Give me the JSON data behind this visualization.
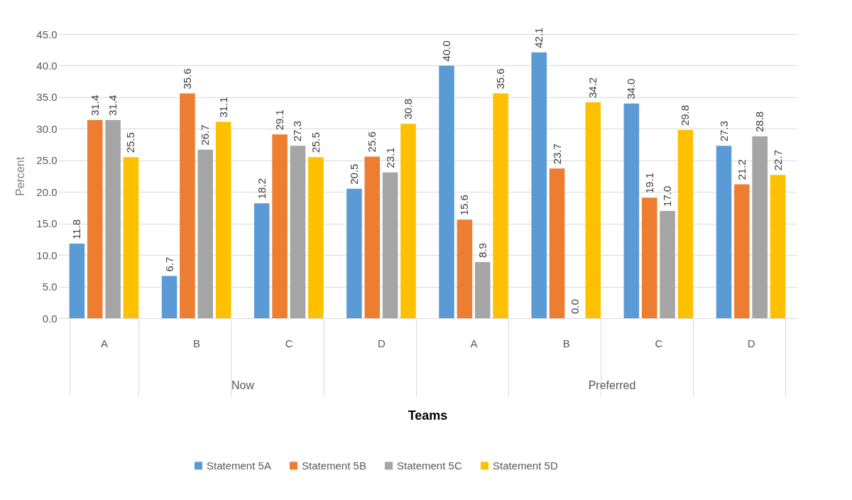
{
  "chart_data": {
    "type": "bar",
    "xlabel": "Teams",
    "ylabel": "Percent",
    "categories": [
      "A",
      "B",
      "C",
      "D",
      "A",
      "B",
      "C",
      "D"
    ],
    "series": [
      {
        "name": "Statement 5A",
        "color": "#5b9bd5",
        "values": [
          11.8,
          6.7,
          18.2,
          20.5,
          40.0,
          42.1,
          34.0,
          27.3
        ],
        "value_labels": [
          "11.8",
          "6.7",
          "18.2",
          "20.5",
          "40.0",
          "42.1",
          "34.0",
          "27.3"
        ]
      },
      {
        "name": "Statement 5B",
        "color": "#ed7d31",
        "values": [
          31.4,
          35.6,
          29.1,
          25.6,
          15.6,
          23.7,
          19.1,
          21.2
        ],
        "value_labels": [
          "31.4",
          "35.6",
          "29.1",
          "25.6",
          "15.6",
          "23.7",
          "19.1",
          "21.2"
        ]
      },
      {
        "name": "Statement 5C",
        "color": "#a5a5a5",
        "values": [
          31.4,
          26.7,
          27.3,
          23.1,
          8.9,
          0.0,
          17.0,
          28.8
        ],
        "value_labels": [
          "31.4",
          "26.7",
          "27.3",
          "23.1",
          "8.9",
          "0.0",
          "17.0",
          "28.8"
        ]
      },
      {
        "name": "Statement 5D",
        "color": "#ffc000",
        "values": [
          25.5,
          31.1,
          25.5,
          30.8,
          35.6,
          34.2,
          29.8,
          22.7
        ],
        "value_labels": [
          "25.5",
          "31.1",
          "25.5",
          "30.8",
          "35.6",
          "34.2",
          "29.8",
          "22.7"
        ]
      }
    ],
    "annotations": [
      "Now",
      "Preferred"
    ],
    "ylim": [
      0,
      45
    ],
    "yticks": [
      {
        "value": 0,
        "label": "0.0"
      },
      {
        "value": 5,
        "label": "5.0"
      },
      {
        "value": 10,
        "label": "10.0"
      },
      {
        "value": 15,
        "label": "15.0"
      },
      {
        "value": 20,
        "label": "20.0"
      },
      {
        "value": 25,
        "label": "25.0"
      },
      {
        "value": 30,
        "label": "30.0"
      },
      {
        "value": 35,
        "label": "35.0"
      },
      {
        "value": 40,
        "label": "40.0"
      },
      {
        "value": 45,
        "label": "45.0"
      }
    ],
    "grid": "y",
    "legend": "bottom"
  }
}
